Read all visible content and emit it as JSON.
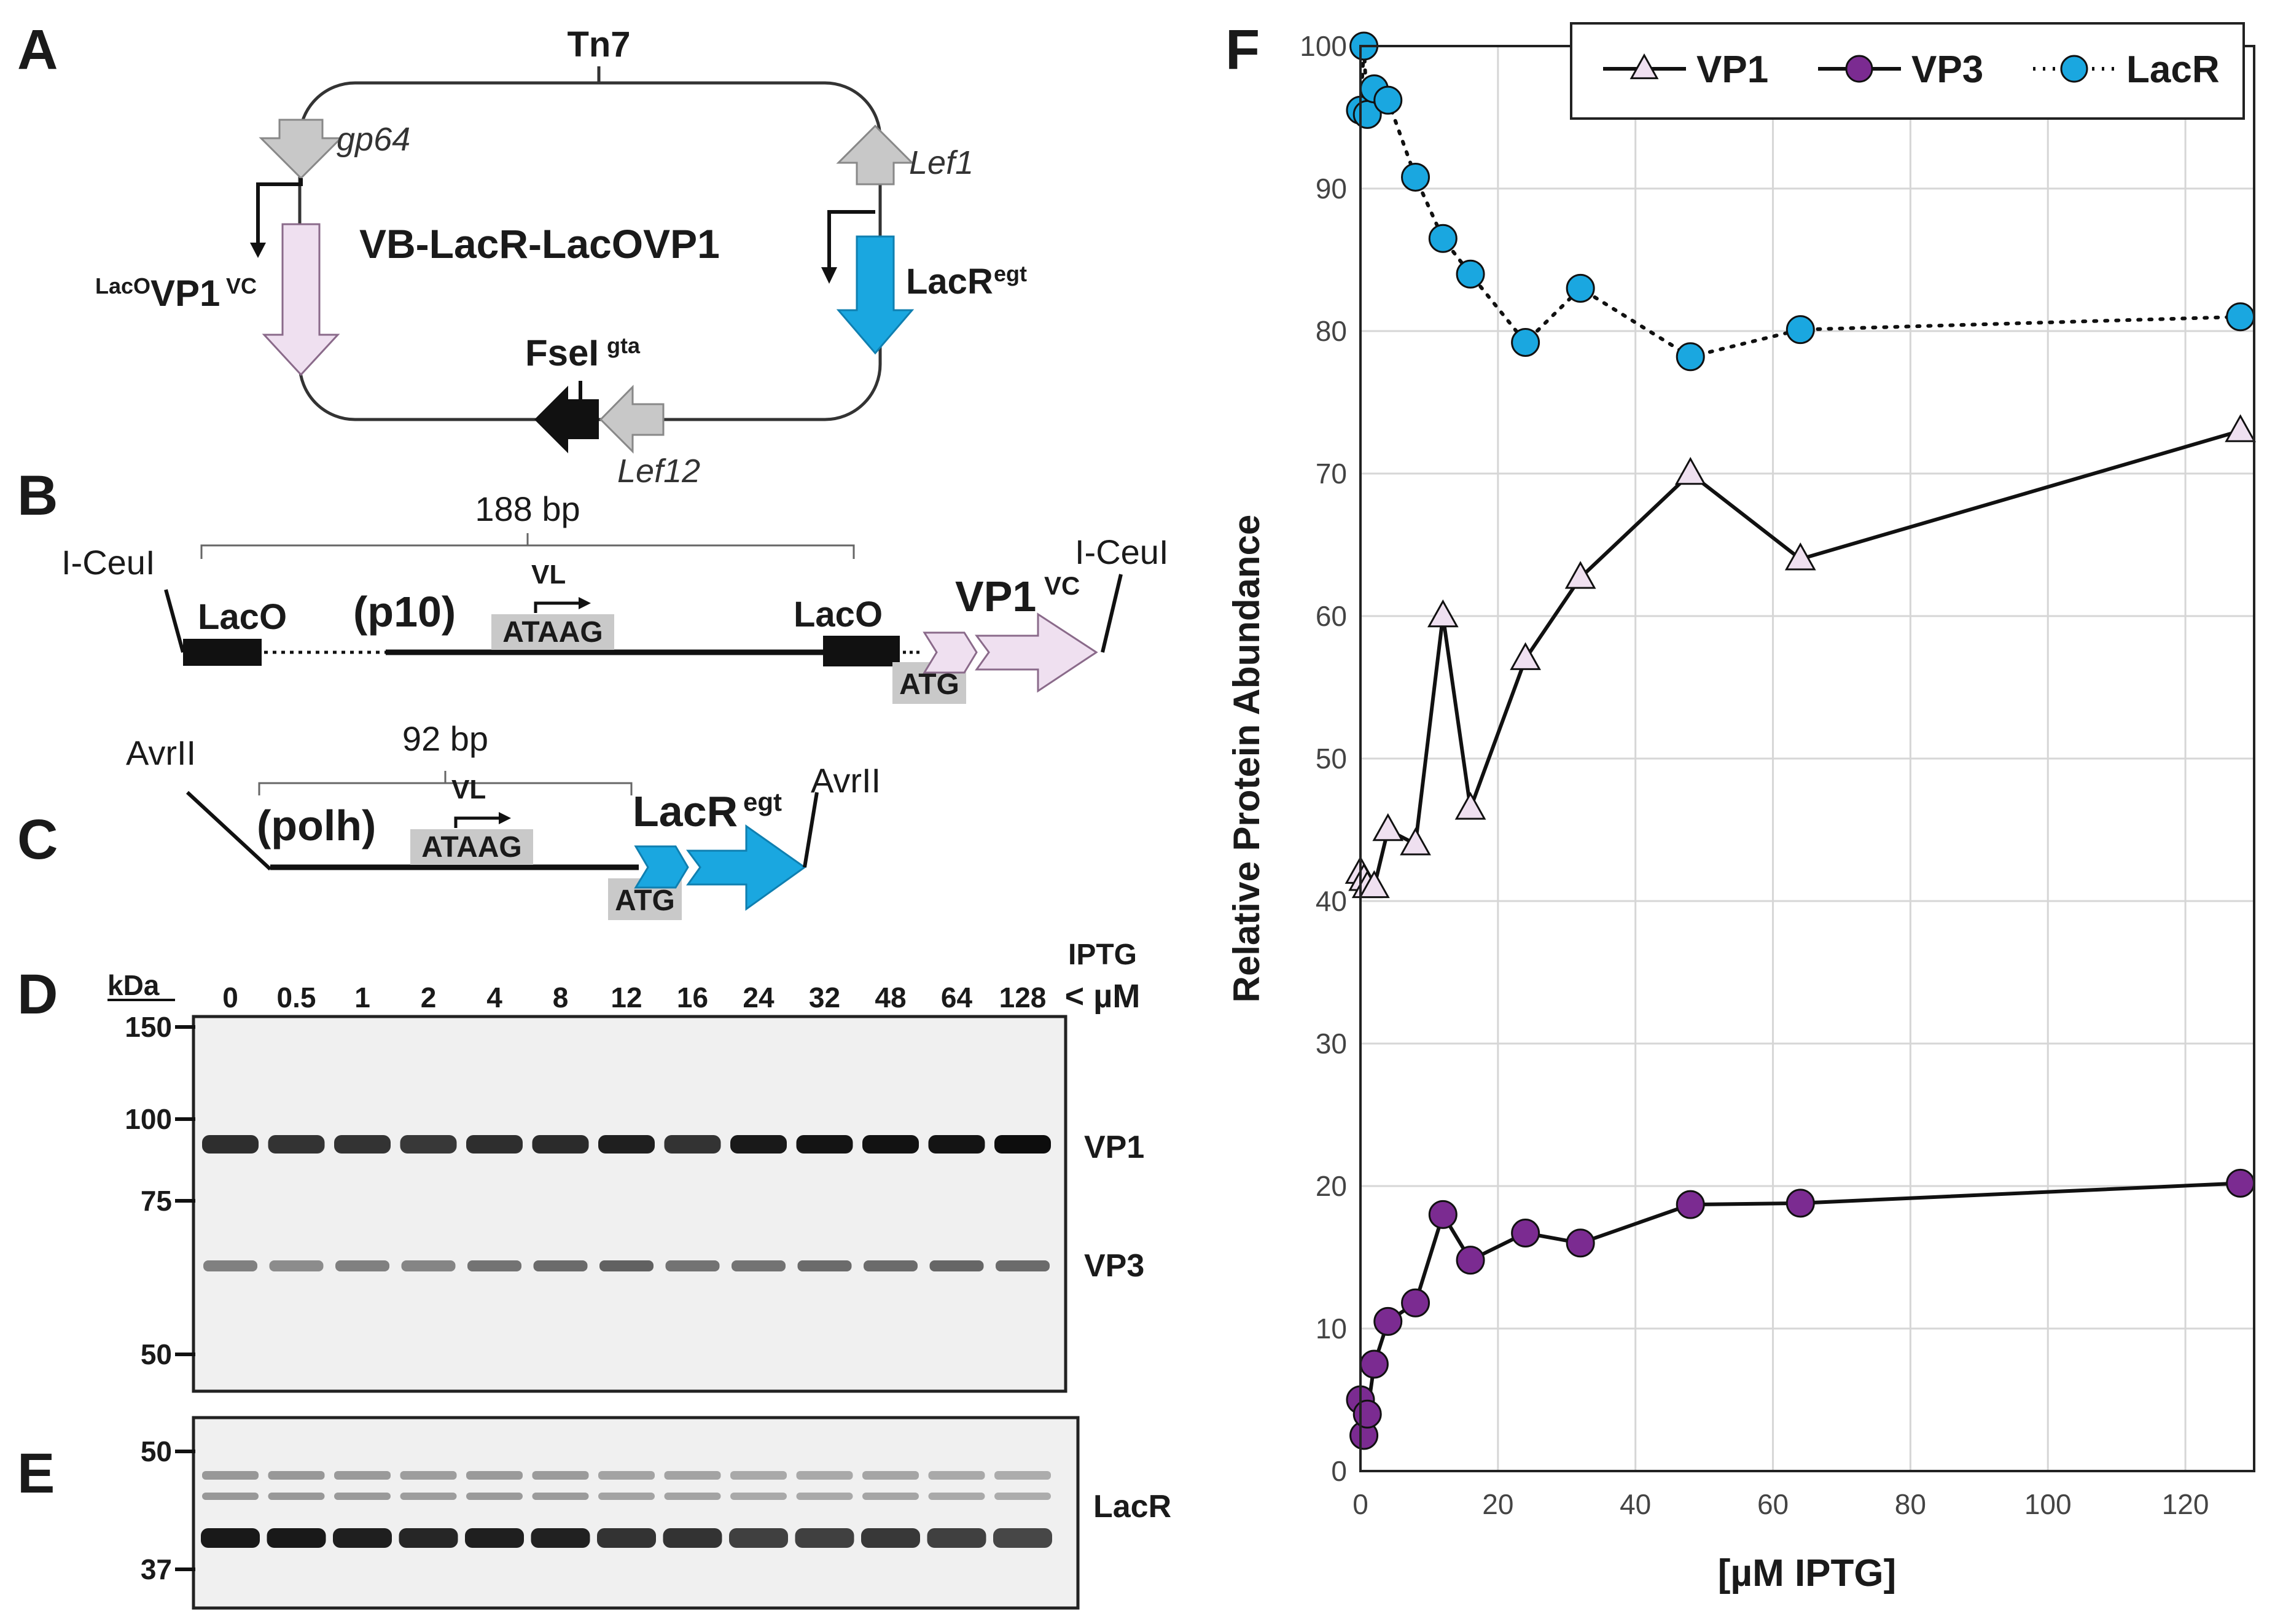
{
  "colors": {
    "lacr_blue": "#1aa7e0",
    "vp1_pink": "#efe0f0",
    "vp3_purple": "#7b2b91",
    "gray_arrow": "#c8c8c8",
    "black": "#111111",
    "grid": "#d6d6d6"
  },
  "panels": {
    "A": {
      "letter": "A",
      "title": "VB-LacR-LacOVP1",
      "tn7": "Tn7",
      "gp64": "gp64",
      "lef1": "Lef1",
      "lef12": "Lef12",
      "vp1_sup": "LacO",
      "vp1_main": "VP1",
      "vp1_sub": "VC",
      "lacr_main": "LacR",
      "lacr_sup": "egt",
      "fsei_main": "FseI",
      "fsei_sup": "gta"
    },
    "B": {
      "letter": "B",
      "size": "188 bp",
      "site_left": "I-CeuI",
      "site_right": "I-CeuI",
      "laco_left": "LacO",
      "laco_right": "LacO",
      "promoter": "(p10)",
      "vl": "VL",
      "ataag": "ATAAG",
      "atg": "ATG",
      "gene_main": "VP1",
      "gene_sup": "VC"
    },
    "C": {
      "letter": "C",
      "size": "92 bp",
      "site_left": "AvrII",
      "site_right": "AvrII",
      "promoter": "(polh)",
      "vl": "VL",
      "ataag": "ATAAG",
      "atg": "ATG",
      "gene_main": "LacR",
      "gene_sup": "egt"
    },
    "D": {
      "letter": "D",
      "kda": "kDa",
      "iptg": "IPTG",
      "um": "< µM",
      "lanes": [
        "0",
        "0.5",
        "1",
        "2",
        "4",
        "8",
        "12",
        "16",
        "24",
        "32",
        "48",
        "64",
        "128"
      ],
      "markers": [
        "150",
        "100",
        "75",
        "50"
      ],
      "band_vp1": "VP1",
      "band_vp3": "VP3",
      "vp1_intensity": [
        0.82,
        0.8,
        0.8,
        0.78,
        0.82,
        0.83,
        0.88,
        0.8,
        0.9,
        0.92,
        0.93,
        0.92,
        0.95
      ],
      "vp3_intensity": [
        0.5,
        0.45,
        0.5,
        0.48,
        0.55,
        0.58,
        0.62,
        0.55,
        0.55,
        0.58,
        0.58,
        0.6,
        0.58
      ]
    },
    "E": {
      "letter": "E",
      "markers": [
        "50",
        "37"
      ],
      "band_lacr": "LacR",
      "lacr_intensity": [
        0.9,
        0.9,
        0.88,
        0.85,
        0.88,
        0.87,
        0.8,
        0.8,
        0.75,
        0.75,
        0.78,
        0.75,
        0.72
      ]
    },
    "F": {
      "letter": "F"
    }
  },
  "chart_data": {
    "type": "line",
    "ylabel": "Relative Protein Abundance",
    "xlabel": "[µM IPTG]",
    "xlim": [
      0,
      130
    ],
    "ylim": [
      0,
      100
    ],
    "x_ticks": [
      "0",
      "20",
      "40",
      "60",
      "80",
      "100",
      "120"
    ],
    "y_ticks": [
      "0",
      "10",
      "20",
      "30",
      "40",
      "50",
      "60",
      "70",
      "80",
      "90",
      "100"
    ],
    "grid": true,
    "legend_position": "top-right",
    "series": [
      {
        "name": "VP1",
        "marker": "triangle",
        "line": "solid",
        "x": [
          0,
          0.5,
          1,
          2,
          4,
          8,
          12,
          16,
          24,
          32,
          48,
          64,
          128
        ],
        "y": [
          42,
          41.5,
          41,
          41,
          45,
          44,
          60,
          46.5,
          57,
          62.7,
          70,
          64,
          73
        ]
      },
      {
        "name": "VP3",
        "marker": "circle",
        "line": "solid",
        "x": [
          0,
          0.5,
          1,
          2,
          4,
          8,
          12,
          16,
          24,
          32,
          48,
          64,
          128
        ],
        "y": [
          5,
          2.5,
          4,
          7.5,
          10.5,
          11.8,
          18,
          14.8,
          16.7,
          16,
          18.7,
          18.8,
          20.2
        ]
      },
      {
        "name": "LacR",
        "marker": "circle",
        "line": "dotted",
        "x": [
          0,
          0.5,
          1,
          2,
          4,
          8,
          12,
          16,
          24,
          32,
          48,
          64,
          128
        ],
        "y": [
          95.5,
          100,
          95.2,
          97,
          96.2,
          90.8,
          86.5,
          84,
          79.2,
          83,
          78.2,
          80.1,
          81
        ]
      }
    ]
  }
}
